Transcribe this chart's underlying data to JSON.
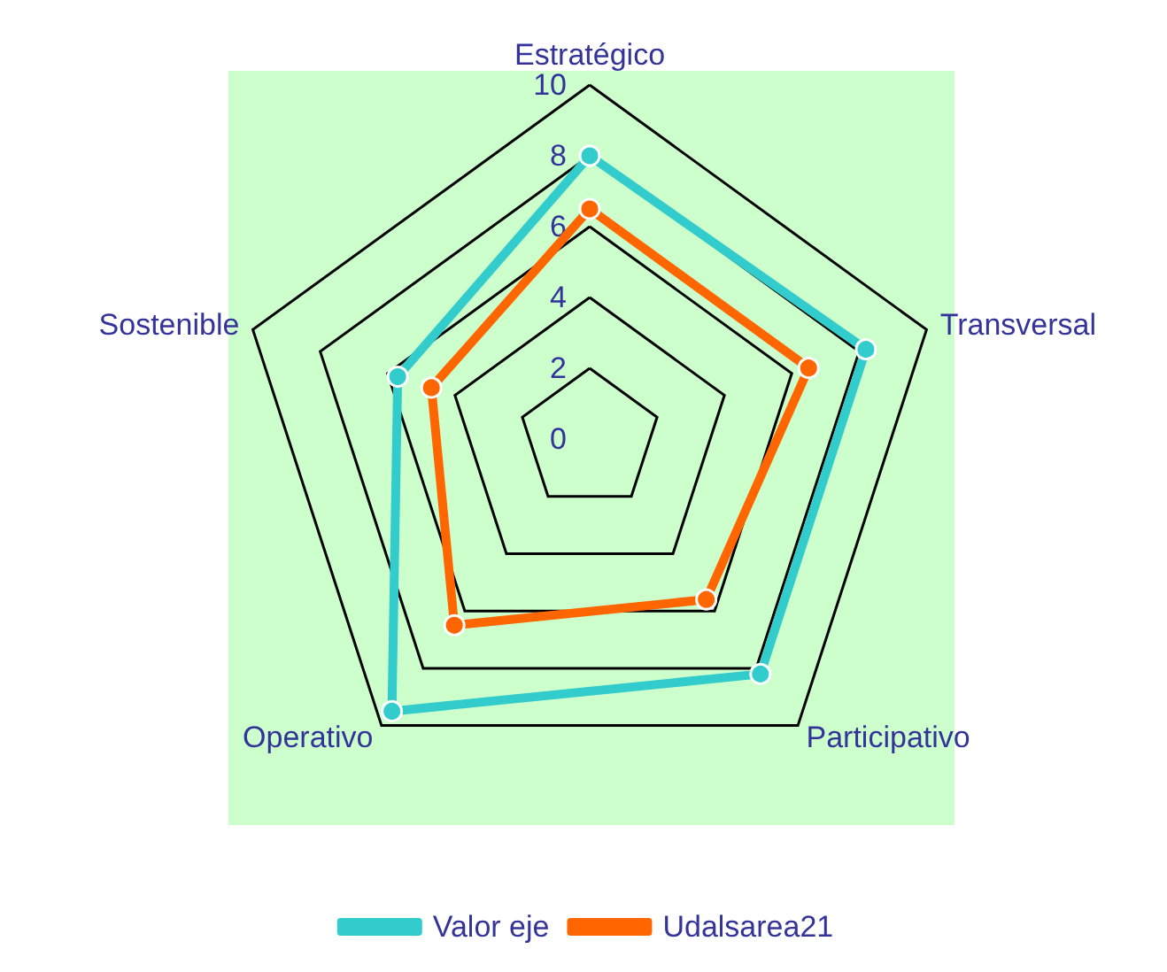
{
  "chart_data": {
    "type": "radar",
    "categories": [
      "Estratégico",
      "Transversal",
      "Participativo",
      "Operativo",
      "Sostenible"
    ],
    "series": [
      {
        "name": "Valor eje",
        "color": "#33cccc",
        "values": [
          8,
          8.2,
          8.2,
          9.5,
          5.7
        ]
      },
      {
        "name": "Udalsarea21",
        "color": "#ff6600",
        "values": [
          6.5,
          6.5,
          5.6,
          6.5,
          4.7
        ]
      }
    ],
    "ylim": [
      0,
      10
    ],
    "yticks": [
      0,
      2,
      4,
      6,
      8,
      10
    ],
    "grid": true,
    "legend": "bottom",
    "marker": "circle"
  }
}
